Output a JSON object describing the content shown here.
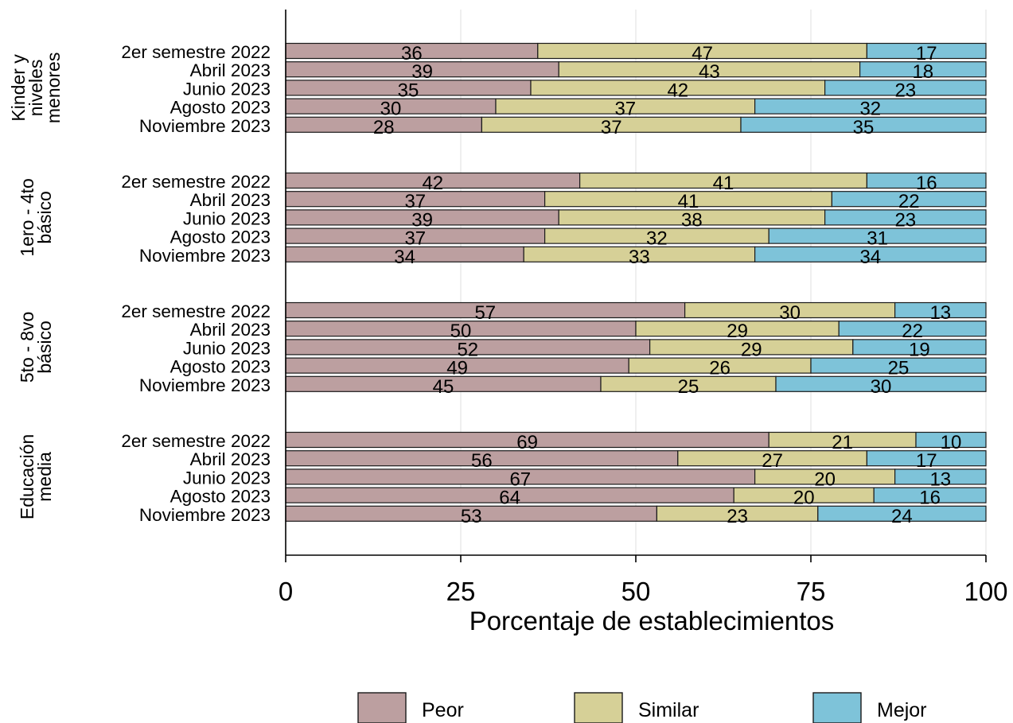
{
  "chart_data": {
    "type": "bar",
    "orientation": "horizontal",
    "stacked": true,
    "title": "",
    "xlabel": "Porcentaje de establecimientos",
    "ylabel": "",
    "xlim": [
      0,
      100
    ],
    "xticks": [
      "0",
      "25",
      "50",
      "75",
      "100"
    ],
    "grid": true,
    "legend_position": "bottom",
    "colors": {
      "Peor": "#bc9fa0",
      "Similar": "#d6d097",
      "Mejor": "#7ec3d9"
    },
    "series": [
      {
        "name": "Peor"
      },
      {
        "name": "Similar"
      },
      {
        "name": "Mejor"
      }
    ],
    "groups": [
      {
        "label_lines": [
          "Kinder y",
          "niveles",
          "menores"
        ],
        "rows": [
          {
            "label": "2er semestre 2022",
            "values": [
              36,
              47,
              17
            ]
          },
          {
            "label": "Abril 2023",
            "values": [
              39,
              43,
              18
            ]
          },
          {
            "label": "Junio 2023",
            "values": [
              35,
              42,
              23
            ]
          },
          {
            "label": "Agosto 2023",
            "values": [
              30,
              37,
              32
            ]
          },
          {
            "label": "Noviembre 2023",
            "values": [
              28,
              37,
              35
            ]
          }
        ]
      },
      {
        "label_lines": [
          "1ero - 4to",
          "básico"
        ],
        "rows": [
          {
            "label": "2er semestre 2022",
            "values": [
              42,
              41,
              16
            ]
          },
          {
            "label": "Abril 2023",
            "values": [
              37,
              41,
              22
            ]
          },
          {
            "label": "Junio 2023",
            "values": [
              39,
              38,
              23
            ]
          },
          {
            "label": "Agosto 2023",
            "values": [
              37,
              32,
              31
            ]
          },
          {
            "label": "Noviembre 2023",
            "values": [
              34,
              33,
              34
            ]
          }
        ]
      },
      {
        "label_lines": [
          "5to - 8vo",
          "básico"
        ],
        "rows": [
          {
            "label": "2er semestre 2022",
            "values": [
              57,
              30,
              13
            ]
          },
          {
            "label": "Abril 2023",
            "values": [
              50,
              29,
              22
            ]
          },
          {
            "label": "Junio 2023",
            "values": [
              52,
              29,
              19
            ]
          },
          {
            "label": "Agosto 2023",
            "values": [
              49,
              26,
              25
            ]
          },
          {
            "label": "Noviembre 2023",
            "values": [
              45,
              25,
              30
            ]
          }
        ]
      },
      {
        "label_lines": [
          "Educación",
          "media"
        ],
        "rows": [
          {
            "label": "2er semestre 2022",
            "values": [
              69,
              21,
              10
            ]
          },
          {
            "label": "Abril 2023",
            "values": [
              56,
              27,
              17
            ]
          },
          {
            "label": "Junio 2023",
            "values": [
              67,
              20,
              13
            ]
          },
          {
            "label": "Agosto 2023",
            "values": [
              64,
              20,
              16
            ]
          },
          {
            "label": "Noviembre 2023",
            "values": [
              53,
              23,
              24
            ]
          }
        ]
      }
    ]
  }
}
